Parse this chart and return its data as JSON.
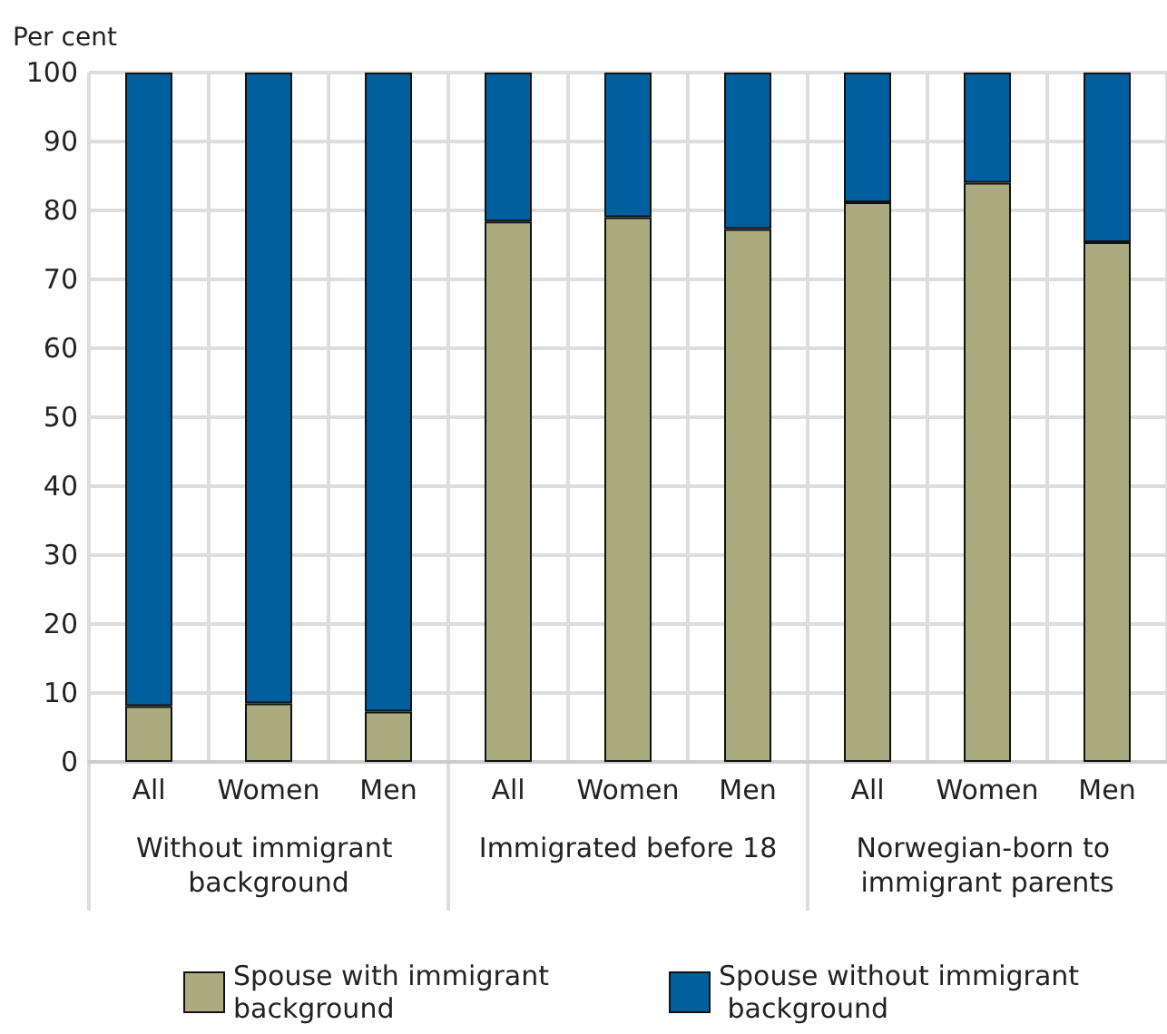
{
  "chart_data": {
    "type": "bar",
    "stacked": true,
    "ylabel": "Per cent",
    "categories": [
      "All",
      "Women",
      "Men",
      "All",
      "Women",
      "Men",
      "All",
      "Women",
      "Men"
    ],
    "series": [
      {
        "name": "Spouse with immigrant background",
        "color": "#abab7f",
        "values": [
          8.1,
          8.5,
          7.3,
          78.4,
          79.0,
          77.3,
          81.2,
          84.0,
          75.4
        ]
      },
      {
        "name": "Spouse without immigrant background",
        "color": "#00609f",
        "values": [
          91.9,
          91.5,
          92.7,
          21.6,
          21.0,
          22.7,
          18.8,
          16.0,
          24.6
        ]
      }
    ],
    "annotations": [
      "Without immigrant background",
      "Immigrated before 18",
      "Norwegian-born to immigrant parents"
    ],
    "ylim": [
      0,
      100
    ],
    "yticks": [
      0,
      10,
      20,
      30,
      40,
      50,
      60,
      70,
      80,
      90,
      100
    ],
    "grid": true,
    "legend": "bottom"
  }
}
